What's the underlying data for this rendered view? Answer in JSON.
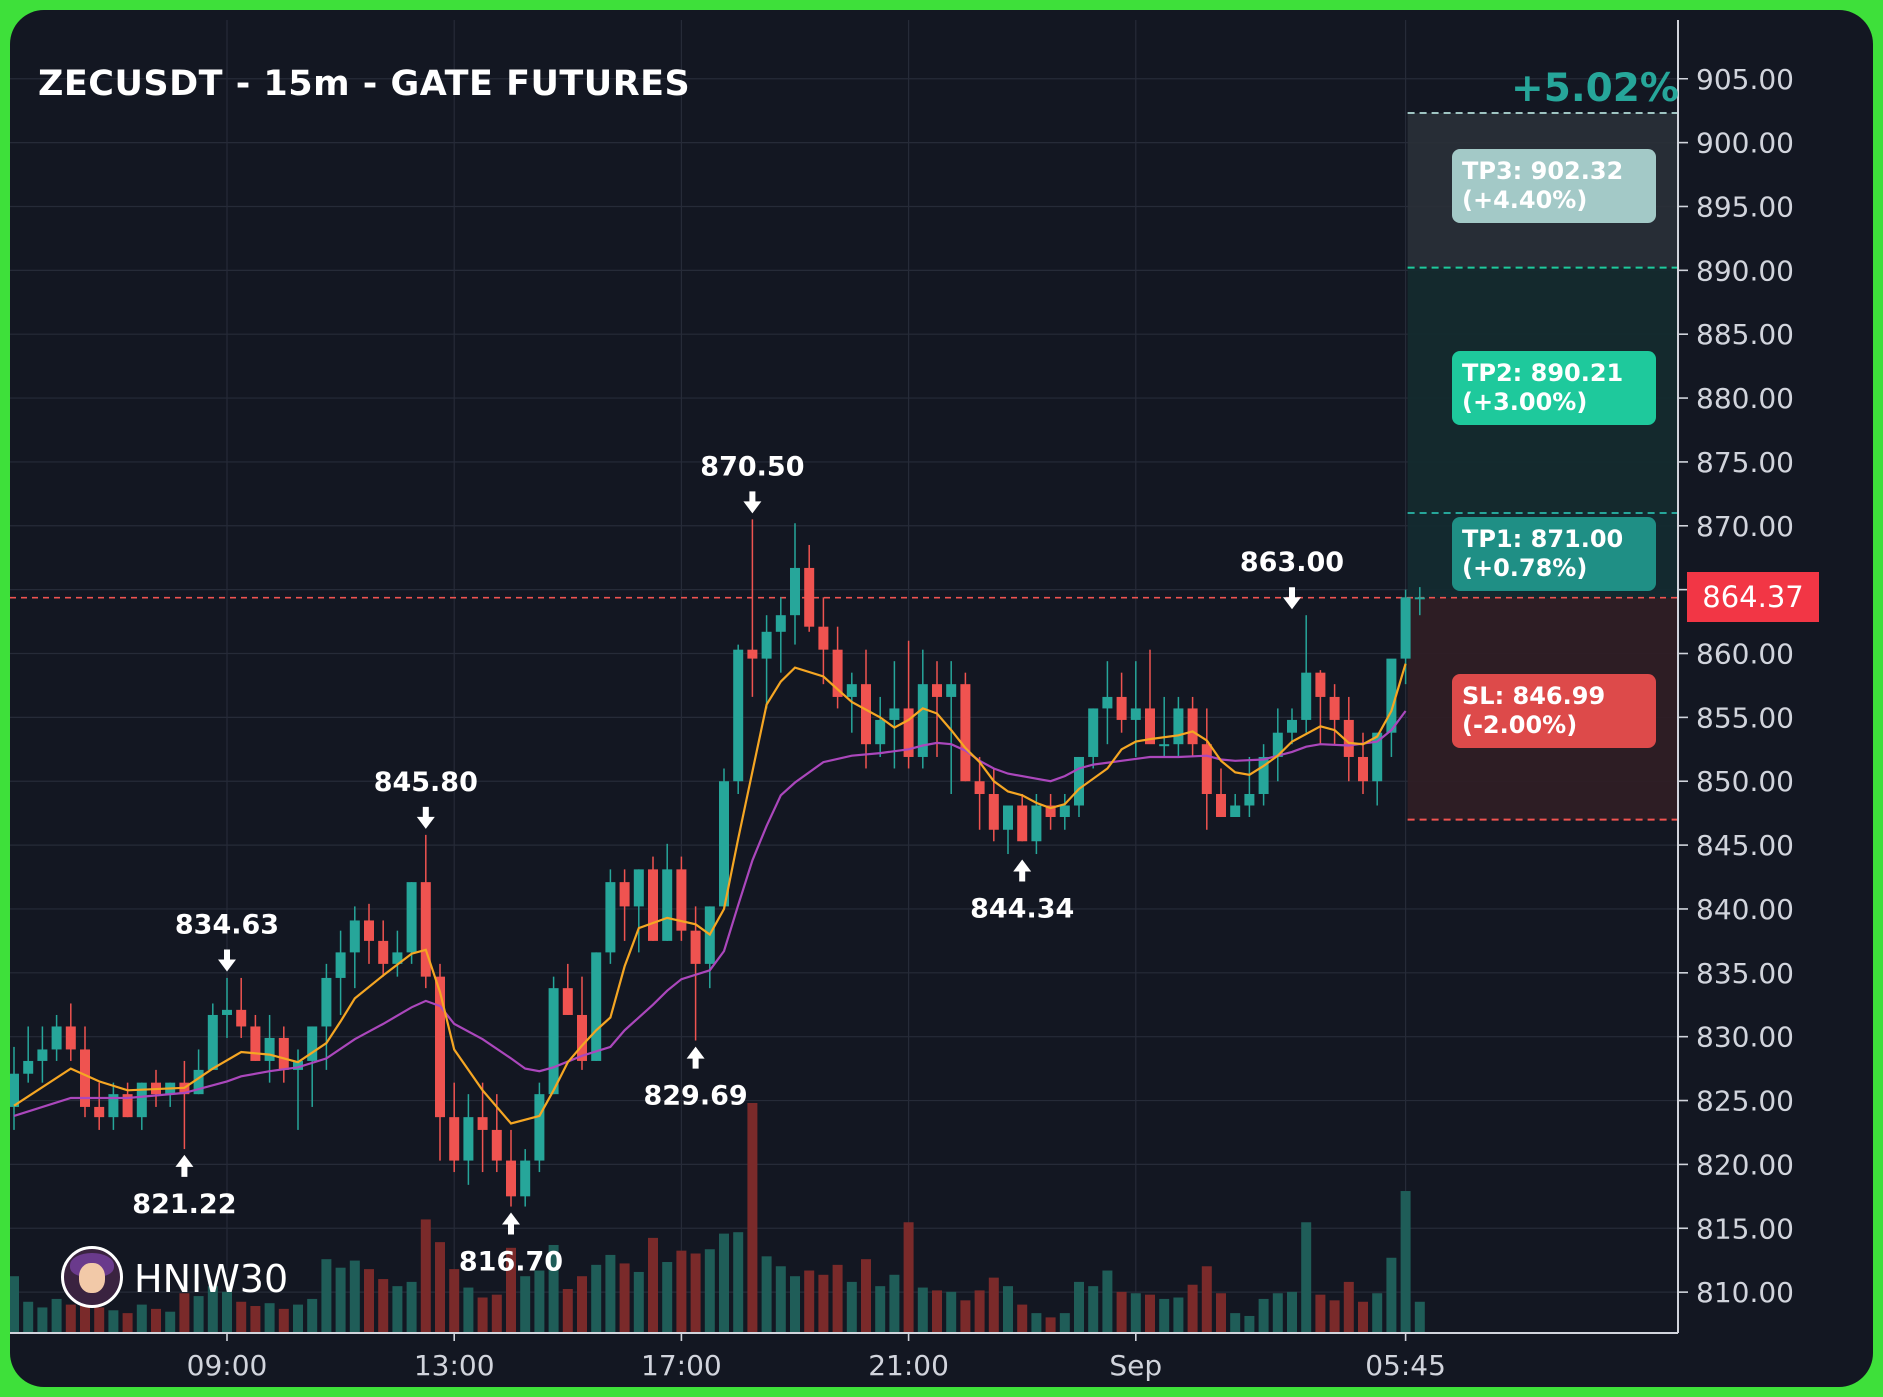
{
  "header": {
    "title": "ZECUSDT - 15m - GATE FUTURES",
    "change_pct": "+5.02%"
  },
  "targets": {
    "tp3": "TP3: 902.32\n(+4.40%)",
    "tp2": "TP2: 890.21\n(+3.00%)",
    "tp1": "TP1: 871.00\n(+0.78%)",
    "sl": "SL: 846.99\n(-2.00%)",
    "current_price": "864.37"
  },
  "watermark": {
    "handle": "HNIW30"
  },
  "colors": {
    "background": "#131722",
    "frame": "#3ee03a",
    "up": "#26a69a",
    "down": "#ef5350",
    "ma_fast": "#f5a623",
    "ma_slow": "#ab47bc"
  },
  "chart_data": {
    "type": "candlestick",
    "symbol": "ZECUSDT",
    "interval": "15m",
    "exchange": "GATE FUTURES",
    "y_ticks": [
      "905.00",
      "900.00",
      "895.00",
      "890.00",
      "885.00",
      "880.00",
      "875.00",
      "870.00",
      "865.00",
      "860.00",
      "855.00",
      "850.00",
      "845.00",
      "840.00",
      "835.00",
      "830.00",
      "825.00",
      "820.00",
      "815.00",
      "810.00"
    ],
    "ylim": [
      806.8,
      909.6
    ],
    "x_ticks": [
      {
        "label": "09:00",
        "idx": 15
      },
      {
        "label": "13:00",
        "idx": 31
      },
      {
        "label": "17:00",
        "idx": 47
      },
      {
        "label": "21:00",
        "idx": 63
      },
      {
        "label": "Sep",
        "idx": 79
      },
      {
        "label": "05:45",
        "idx": 98
      }
    ],
    "candles": [
      {
        "o": 824.5,
        "h": 829.2,
        "l": 822.7,
        "c": 827.1,
        "v": 0.4
      },
      {
        "o": 827.1,
        "h": 830.8,
        "l": 826.4,
        "c": 828.1,
        "v": 0.22
      },
      {
        "o": 828.1,
        "h": 830.8,
        "l": 826.4,
        "c": 829.0,
        "v": 0.18
      },
      {
        "o": 829.0,
        "h": 831.7,
        "l": 828.1,
        "c": 830.8,
        "v": 0.24
      },
      {
        "o": 830.8,
        "h": 832.6,
        "l": 828.1,
        "c": 829.0,
        "v": 0.2
      },
      {
        "o": 829.0,
        "h": 830.8,
        "l": 823.7,
        "c": 824.5,
        "v": 0.55
      },
      {
        "o": 824.5,
        "h": 826.4,
        "l": 822.7,
        "c": 823.7,
        "v": 0.18
      },
      {
        "o": 823.7,
        "h": 826.4,
        "l": 822.7,
        "c": 825.5,
        "v": 0.16
      },
      {
        "o": 825.5,
        "h": 826.4,
        "l": 823.7,
        "c": 823.7,
        "v": 0.14
      },
      {
        "o": 823.7,
        "h": 826.4,
        "l": 822.7,
        "c": 826.4,
        "v": 0.2
      },
      {
        "o": 826.4,
        "h": 827.4,
        "l": 824.5,
        "c": 825.5,
        "v": 0.17
      },
      {
        "o": 825.5,
        "h": 826.4,
        "l": 824.5,
        "c": 826.4,
        "v": 0.15
      },
      {
        "o": 826.4,
        "h": 828.1,
        "l": 821.2,
        "c": 825.5,
        "v": 0.28
      },
      {
        "o": 825.5,
        "h": 829.0,
        "l": 825.5,
        "c": 827.4,
        "v": 0.26
      },
      {
        "o": 827.4,
        "h": 832.6,
        "l": 827.4,
        "c": 831.7,
        "v": 0.33
      },
      {
        "o": 831.7,
        "h": 834.6,
        "l": 829.9,
        "c": 832.1,
        "v": 0.29
      },
      {
        "o": 832.1,
        "h": 834.6,
        "l": 829.9,
        "c": 830.8,
        "v": 0.22
      },
      {
        "o": 830.8,
        "h": 831.7,
        "l": 828.1,
        "c": 828.1,
        "v": 0.19
      },
      {
        "o": 828.1,
        "h": 831.7,
        "l": 826.4,
        "c": 829.9,
        "v": 0.21
      },
      {
        "o": 829.9,
        "h": 830.8,
        "l": 826.4,
        "c": 827.4,
        "v": 0.17
      },
      {
        "o": 827.4,
        "h": 829.0,
        "l": 822.7,
        "c": 828.1,
        "v": 0.2
      },
      {
        "o": 828.1,
        "h": 830.8,
        "l": 824.5,
        "c": 830.8,
        "v": 0.24
      },
      {
        "o": 830.8,
        "h": 835.7,
        "l": 827.4,
        "c": 834.6,
        "v": 0.52
      },
      {
        "o": 834.6,
        "h": 838.3,
        "l": 831.7,
        "c": 836.6,
        "v": 0.46
      },
      {
        "o": 836.6,
        "h": 840.2,
        "l": 833.8,
        "c": 839.1,
        "v": 0.51
      },
      {
        "o": 839.1,
        "h": 840.4,
        "l": 835.7,
        "c": 837.5,
        "v": 0.45
      },
      {
        "o": 837.5,
        "h": 839.1,
        "l": 834.7,
        "c": 835.7,
        "v": 0.38
      },
      {
        "o": 835.7,
        "h": 838.3,
        "l": 834.7,
        "c": 836.6,
        "v": 0.33
      },
      {
        "o": 836.6,
        "h": 842.1,
        "l": 835.7,
        "c": 842.1,
        "v": 0.36
      },
      {
        "o": 842.1,
        "h": 845.8,
        "l": 833.8,
        "c": 834.7,
        "v": 0.8
      },
      {
        "o": 834.7,
        "h": 835.7,
        "l": 820.3,
        "c": 823.7,
        "v": 0.64
      },
      {
        "o": 823.7,
        "h": 826.4,
        "l": 819.4,
        "c": 820.3,
        "v": 0.45
      },
      {
        "o": 820.3,
        "h": 825.5,
        "l": 818.4,
        "c": 823.7,
        "v": 0.32
      },
      {
        "o": 823.7,
        "h": 826.4,
        "l": 819.4,
        "c": 822.7,
        "v": 0.25
      },
      {
        "o": 822.7,
        "h": 825.5,
        "l": 819.4,
        "c": 820.3,
        "v": 0.27
      },
      {
        "o": 820.3,
        "h": 822.7,
        "l": 816.7,
        "c": 817.5,
        "v": 0.6
      },
      {
        "o": 817.5,
        "h": 821.2,
        "l": 816.7,
        "c": 820.3,
        "v": 0.4
      },
      {
        "o": 820.3,
        "h": 826.4,
        "l": 819.4,
        "c": 825.5,
        "v": 0.44
      },
      {
        "o": 825.5,
        "h": 834.7,
        "l": 825.5,
        "c": 833.8,
        "v": 0.62
      },
      {
        "o": 833.8,
        "h": 835.7,
        "l": 831.7,
        "c": 831.7,
        "v": 0.31
      },
      {
        "o": 831.7,
        "h": 834.7,
        "l": 827.4,
        "c": 828.1,
        "v": 0.4
      },
      {
        "o": 828.1,
        "h": 836.6,
        "l": 828.1,
        "c": 836.6,
        "v": 0.48
      },
      {
        "o": 836.6,
        "h": 843.1,
        "l": 835.7,
        "c": 842.1,
        "v": 0.55
      },
      {
        "o": 842.1,
        "h": 843.1,
        "l": 837.5,
        "c": 840.2,
        "v": 0.49
      },
      {
        "o": 840.2,
        "h": 843.1,
        "l": 836.6,
        "c": 843.1,
        "v": 0.43
      },
      {
        "o": 843.1,
        "h": 844.1,
        "l": 837.5,
        "c": 837.5,
        "v": 0.67
      },
      {
        "o": 837.5,
        "h": 845.1,
        "l": 837.5,
        "c": 843.1,
        "v": 0.5
      },
      {
        "o": 843.1,
        "h": 844.1,
        "l": 837.5,
        "c": 838.3,
        "v": 0.58
      },
      {
        "o": 838.3,
        "h": 840.2,
        "l": 829.7,
        "c": 835.7,
        "v": 0.56
      },
      {
        "o": 835.7,
        "h": 840.2,
        "l": 833.8,
        "c": 840.2,
        "v": 0.59
      },
      {
        "o": 840.2,
        "h": 851.0,
        "l": 840.2,
        "c": 850.0,
        "v": 0.7
      },
      {
        "o": 850.0,
        "h": 860.7,
        "l": 849.0,
        "c": 860.3,
        "v": 0.71
      },
      {
        "o": 860.3,
        "h": 870.5,
        "l": 856.6,
        "c": 859.6,
        "v": 1.62
      },
      {
        "o": 859.6,
        "h": 863.0,
        "l": 855.7,
        "c": 861.7,
        "v": 0.54
      },
      {
        "o": 861.7,
        "h": 864.4,
        "l": 858.5,
        "c": 863.0,
        "v": 0.47
      },
      {
        "o": 863.0,
        "h": 870.2,
        "l": 860.7,
        "c": 866.7,
        "v": 0.4
      },
      {
        "o": 866.7,
        "h": 868.5,
        "l": 861.7,
        "c": 862.1,
        "v": 0.44
      },
      {
        "o": 862.1,
        "h": 864.4,
        "l": 857.6,
        "c": 860.3,
        "v": 0.41
      },
      {
        "o": 860.3,
        "h": 862.1,
        "l": 855.7,
        "c": 856.6,
        "v": 0.48
      },
      {
        "o": 856.6,
        "h": 858.5,
        "l": 853.8,
        "c": 857.6,
        "v": 0.36
      },
      {
        "o": 857.6,
        "h": 860.3,
        "l": 851.0,
        "c": 852.9,
        "v": 0.52
      },
      {
        "o": 852.9,
        "h": 856.6,
        "l": 851.9,
        "c": 854.8,
        "v": 0.33
      },
      {
        "o": 854.8,
        "h": 859.4,
        "l": 851.0,
        "c": 855.7,
        "v": 0.41
      },
      {
        "o": 855.7,
        "h": 861.0,
        "l": 851.0,
        "c": 851.9,
        "v": 0.78
      },
      {
        "o": 851.9,
        "h": 860.3,
        "l": 851.0,
        "c": 857.6,
        "v": 0.32
      },
      {
        "o": 857.6,
        "h": 859.4,
        "l": 851.9,
        "c": 856.6,
        "v": 0.3
      },
      {
        "o": 856.6,
        "h": 859.4,
        "l": 849.0,
        "c": 857.6,
        "v": 0.29
      },
      {
        "o": 857.6,
        "h": 858.5,
        "l": 850.0,
        "c": 850.0,
        "v": 0.23
      },
      {
        "o": 850.0,
        "h": 851.9,
        "l": 846.2,
        "c": 849.0,
        "v": 0.3
      },
      {
        "o": 849.0,
        "h": 851.0,
        "l": 845.3,
        "c": 846.2,
        "v": 0.39
      },
      {
        "o": 846.2,
        "h": 848.1,
        "l": 844.3,
        "c": 848.1,
        "v": 0.33
      },
      {
        "o": 848.1,
        "h": 849.0,
        "l": 845.3,
        "c": 845.3,
        "v": 0.2
      },
      {
        "o": 845.3,
        "h": 849.0,
        "l": 844.3,
        "c": 848.1,
        "v": 0.14
      },
      {
        "o": 848.1,
        "h": 849.0,
        "l": 846.2,
        "c": 847.2,
        "v": 0.11
      },
      {
        "o": 847.2,
        "h": 849.0,
        "l": 846.2,
        "c": 848.1,
        "v": 0.14
      },
      {
        "o": 848.1,
        "h": 851.9,
        "l": 847.2,
        "c": 851.9,
        "v": 0.36
      },
      {
        "o": 851.9,
        "h": 855.7,
        "l": 851.0,
        "c": 855.7,
        "v": 0.33
      },
      {
        "o": 855.7,
        "h": 859.4,
        "l": 852.9,
        "c": 856.6,
        "v": 0.44
      },
      {
        "o": 856.6,
        "h": 858.5,
        "l": 853.8,
        "c": 854.8,
        "v": 0.29
      },
      {
        "o": 854.8,
        "h": 859.4,
        "l": 851.9,
        "c": 855.7,
        "v": 0.28
      },
      {
        "o": 855.7,
        "h": 860.3,
        "l": 853.8,
        "c": 852.9,
        "v": 0.27
      },
      {
        "o": 852.9,
        "h": 856.6,
        "l": 851.9,
        "c": 852.9,
        "v": 0.24
      },
      {
        "o": 852.9,
        "h": 856.6,
        "l": 851.9,
        "c": 855.7,
        "v": 0.25
      },
      {
        "o": 855.7,
        "h": 856.6,
        "l": 851.9,
        "c": 852.9,
        "v": 0.34
      },
      {
        "o": 852.9,
        "h": 855.7,
        "l": 846.2,
        "c": 849.0,
        "v": 0.47
      },
      {
        "o": 849.0,
        "h": 851.0,
        "l": 847.2,
        "c": 847.2,
        "v": 0.28
      },
      {
        "o": 847.2,
        "h": 849.0,
        "l": 847.2,
        "c": 848.1,
        "v": 0.14
      },
      {
        "o": 848.1,
        "h": 851.9,
        "l": 847.2,
        "c": 849.0,
        "v": 0.12
      },
      {
        "o": 849.0,
        "h": 852.9,
        "l": 848.1,
        "c": 851.9,
        "v": 0.24
      },
      {
        "o": 851.9,
        "h": 855.7,
        "l": 850.0,
        "c": 853.8,
        "v": 0.28
      },
      {
        "o": 853.8,
        "h": 855.7,
        "l": 852.9,
        "c": 854.8,
        "v": 0.29
      },
      {
        "o": 854.8,
        "h": 863.0,
        "l": 853.8,
        "c": 858.5,
        "v": 0.78
      },
      {
        "o": 858.5,
        "h": 858.7,
        "l": 852.9,
        "c": 856.6,
        "v": 0.27
      },
      {
        "o": 856.6,
        "h": 857.6,
        "l": 852.9,
        "c": 854.8,
        "v": 0.23
      },
      {
        "o": 854.8,
        "h": 856.6,
        "l": 850.0,
        "c": 851.9,
        "v": 0.36
      },
      {
        "o": 851.9,
        "h": 853.8,
        "l": 849.0,
        "c": 850.0,
        "v": 0.22
      },
      {
        "o": 850.0,
        "h": 853.8,
        "l": 848.1,
        "c": 853.8,
        "v": 0.28
      },
      {
        "o": 853.8,
        "h": 859.4,
        "l": 851.9,
        "c": 859.6,
        "v": 0.53
      },
      {
        "o": 859.6,
        "h": 865.0,
        "l": 857.6,
        "c": 864.4,
        "v": 1.0
      },
      {
        "o": 864.4,
        "h": 865.2,
        "l": 863.0,
        "c": 864.4,
        "v": 0.22
      }
    ],
    "ma_fast": [
      [
        0,
        824.6
      ],
      [
        4,
        827.5
      ],
      [
        6,
        826.5
      ],
      [
        8,
        825.8
      ],
      [
        12,
        826.0
      ],
      [
        14,
        827.5
      ],
      [
        16,
        828.8
      ],
      [
        18,
        828.6
      ],
      [
        20,
        828.0
      ],
      [
        22,
        829.5
      ],
      [
        23,
        831.2
      ],
      [
        24,
        833.0
      ],
      [
        26,
        834.8
      ],
      [
        28,
        836.5
      ],
      [
        29,
        836.8
      ],
      [
        30,
        833.5
      ],
      [
        31,
        829.0
      ],
      [
        33,
        825.8
      ],
      [
        35,
        823.2
      ],
      [
        37,
        823.8
      ],
      [
        38,
        825.8
      ],
      [
        39,
        828.0
      ],
      [
        40,
        829.3
      ],
      [
        41,
        830.5
      ],
      [
        42,
        831.5
      ],
      [
        43,
        835.5
      ],
      [
        44,
        838.5
      ],
      [
        46,
        839.3
      ],
      [
        48,
        838.8
      ],
      [
        49,
        838.0
      ],
      [
        50,
        840.0
      ],
      [
        51,
        845.5
      ],
      [
        53,
        856.0
      ],
      [
        54,
        857.8
      ],
      [
        55,
        858.9
      ],
      [
        57,
        858.2
      ],
      [
        58,
        857.2
      ],
      [
        59,
        856.2
      ],
      [
        61,
        855.0
      ],
      [
        62,
        854.2
      ],
      [
        63,
        854.8
      ],
      [
        64,
        855.7
      ],
      [
        65,
        855.3
      ],
      [
        66,
        854.0
      ],
      [
        67,
        852.6
      ],
      [
        68,
        851.5
      ],
      [
        69,
        850.0
      ],
      [
        70,
        849.2
      ],
      [
        71,
        848.9
      ],
      [
        72,
        848.3
      ],
      [
        73,
        847.9
      ],
      [
        74,
        848.2
      ],
      [
        75,
        849.4
      ],
      [
        77,
        851.0
      ],
      [
        78,
        852.5
      ],
      [
        79,
        853.1
      ],
      [
        80,
        853.3
      ],
      [
        82,
        853.6
      ],
      [
        83,
        853.9
      ],
      [
        84,
        853.2
      ],
      [
        85,
        851.6
      ],
      [
        86,
        850.7
      ],
      [
        87,
        850.5
      ],
      [
        88,
        851.2
      ],
      [
        89,
        852.0
      ],
      [
        90,
        853.1
      ],
      [
        92,
        854.3
      ],
      [
        93,
        854.0
      ],
      [
        94,
        853.0
      ],
      [
        95,
        852.9
      ],
      [
        96,
        853.5
      ],
      [
        97,
        855.5
      ],
      [
        98,
        859.2
      ]
    ],
    "ma_slow": [
      [
        0,
        823.8
      ],
      [
        4,
        825.2
      ],
      [
        8,
        825.2
      ],
      [
        12,
        825.6
      ],
      [
        15,
        826.5
      ],
      [
        16,
        826.9
      ],
      [
        18,
        827.3
      ],
      [
        20,
        827.6
      ],
      [
        22,
        828.3
      ],
      [
        24,
        829.8
      ],
      [
        26,
        831.0
      ],
      [
        28,
        832.3
      ],
      [
        29,
        832.8
      ],
      [
        30,
        832.4
      ],
      [
        31,
        831.0
      ],
      [
        33,
        829.8
      ],
      [
        35,
        828.3
      ],
      [
        36,
        827.5
      ],
      [
        37,
        827.3
      ],
      [
        38,
        827.6
      ],
      [
        40,
        828.5
      ],
      [
        42,
        829.2
      ],
      [
        43,
        830.5
      ],
      [
        45,
        832.5
      ],
      [
        46,
        833.6
      ],
      [
        47,
        834.5
      ],
      [
        49,
        835.2
      ],
      [
        50,
        836.7
      ],
      [
        51,
        840.3
      ],
      [
        52,
        843.8
      ],
      [
        53,
        846.5
      ],
      [
        54,
        848.9
      ],
      [
        55,
        849.9
      ],
      [
        57,
        851.5
      ],
      [
        59,
        852.0
      ],
      [
        61,
        852.2
      ],
      [
        63,
        852.5
      ],
      [
        64,
        852.8
      ],
      [
        65,
        853.0
      ],
      [
        66,
        852.9
      ],
      [
        67,
        852.4
      ],
      [
        68,
        851.6
      ],
      [
        69,
        851.0
      ],
      [
        70,
        850.6
      ],
      [
        72,
        850.2
      ],
      [
        73,
        850.0
      ],
      [
        74,
        850.4
      ],
      [
        75,
        851.0
      ],
      [
        76,
        851.3
      ],
      [
        78,
        851.6
      ],
      [
        80,
        851.9
      ],
      [
        82,
        851.9
      ],
      [
        84,
        852.0
      ],
      [
        85,
        851.7
      ],
      [
        86,
        851.6
      ],
      [
        88,
        851.7
      ],
      [
        90,
        852.3
      ],
      [
        91,
        852.7
      ],
      [
        92,
        852.9
      ],
      [
        94,
        852.8
      ],
      [
        96,
        853.1
      ],
      [
        97,
        854.0
      ],
      [
        98,
        855.5
      ]
    ],
    "annotations": [
      {
        "label": "834.63",
        "idx": 15,
        "price": 834.63,
        "type": "high"
      },
      {
        "label": "821.22",
        "idx": 12,
        "price": 821.22,
        "type": "low"
      },
      {
        "label": "845.80",
        "idx": 29,
        "price": 845.8,
        "type": "high"
      },
      {
        "label": "816.70",
        "idx": 35,
        "price": 816.7,
        "type": "low"
      },
      {
        "label": "870.50",
        "idx": 52,
        "price": 870.5,
        "type": "high"
      },
      {
        "label": "829.69",
        "idx": 48,
        "price": 829.69,
        "type": "low"
      },
      {
        "label": "844.34",
        "idx": 71,
        "price": 844.34,
        "type": "low"
      },
      {
        "label": "863.00",
        "idx": 90,
        "price": 863.0,
        "type": "high"
      }
    ],
    "levels": {
      "current": 864.37,
      "tp1": 871.0,
      "tp2": 890.21,
      "tp3": 902.32,
      "top": 905.0,
      "sl": 846.99
    }
  }
}
